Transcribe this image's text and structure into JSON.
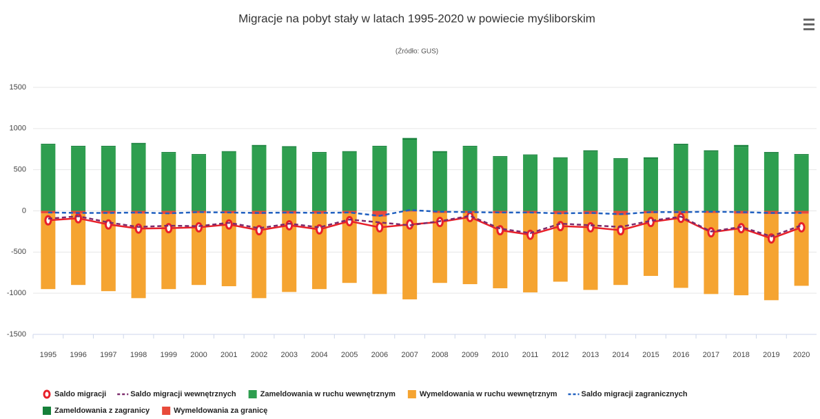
{
  "chart_data": {
    "type": "bar",
    "title": "Migracje na pobyt stały w latach 1995-2020 w powiecie myśliborskim",
    "subtitle": "(Źródło: GUS)",
    "categories": [
      "1995",
      "1996",
      "1997",
      "1998",
      "1999",
      "2000",
      "2001",
      "2002",
      "2003",
      "2004",
      "2005",
      "2006",
      "2007",
      "2008",
      "2009",
      "2010",
      "2011",
      "2012",
      "2013",
      "2014",
      "2015",
      "2016",
      "2017",
      "2018",
      "2019",
      "2020"
    ],
    "ylim": [
      -1500,
      1500
    ],
    "yticks": [
      -1500,
      -1000,
      -500,
      0,
      500,
      1000,
      1500
    ],
    "grid": true,
    "legend": "bottom",
    "series": [
      {
        "name": "Saldo migracji",
        "type": "line",
        "marker": true,
        "color": "#e8202a",
        "values": [
          -115,
          -90,
          -165,
          -215,
          -210,
          -200,
          -165,
          -235,
          -175,
          -225,
          -125,
          -200,
          -165,
          -135,
          -75,
          -235,
          -290,
          -185,
          -200,
          -235,
          -135,
          -85,
          -260,
          -210,
          -335,
          -200
        ]
      },
      {
        "name": "Saldo migracji wewnętrznych",
        "type": "line",
        "dashed": true,
        "color": "#7b2a6b",
        "values": [
          -95,
          -65,
          -140,
          -195,
          -180,
          -185,
          -145,
          -210,
          -155,
          -200,
          -105,
          -140,
          -175,
          -125,
          -60,
          -215,
          -270,
          -155,
          -175,
          -195,
          -120,
          -70,
          -250,
          -195,
          -310,
          -175
        ]
      },
      {
        "name": "Zameldowania w ruchu wewnętrznym",
        "type": "bar",
        "color": "#2e9e4f",
        "values": [
          805,
          780,
          780,
          810,
          705,
          680,
          715,
          785,
          770,
          705,
          715,
          780,
          865,
          710,
          780,
          655,
          675,
          640,
          720,
          630,
          635,
          800,
          720,
          780,
          700,
          680
        ]
      },
      {
        "name": "Wymeldowania w ruchu wewnętrznym",
        "type": "bar",
        "color": "#f5a431",
        "values": [
          -920,
          -865,
          -940,
          -1025,
          -910,
          -875,
          -885,
          -1020,
          -950,
          -915,
          -845,
          -940,
          -1065,
          -850,
          -865,
          -910,
          -960,
          -820,
          -920,
          -850,
          -760,
          -905,
          -985,
          -990,
          -1045,
          -875
        ]
      },
      {
        "name": "Saldo migracji zagranicznych",
        "type": "line",
        "dashed": true,
        "color": "#1f5fbf",
        "values": [
          -20,
          -25,
          -25,
          -20,
          -30,
          -15,
          -20,
          -25,
          -20,
          -25,
          -20,
          -60,
          10,
          -10,
          -15,
          -20,
          -20,
          -30,
          -25,
          -40,
          -15,
          -15,
          -10,
          -15,
          -25,
          -25
        ]
      },
      {
        "name": "Zameldowania z zagranicy",
        "type": "bar",
        "color": "#16803a",
        "values": [
          10,
          10,
          10,
          15,
          10,
          10,
          10,
          15,
          15,
          10,
          10,
          10,
          20,
          15,
          10,
          10,
          10,
          10,
          15,
          10,
          15,
          15,
          15,
          20,
          15,
          10
        ]
      },
      {
        "name": "Wymeldowania za granicę",
        "type": "bar",
        "color": "#e84a3a",
        "values": [
          -30,
          -35,
          -35,
          -35,
          -40,
          -25,
          -30,
          -40,
          -35,
          -35,
          -30,
          -70,
          -10,
          -25,
          -25,
          -30,
          -30,
          -40,
          -40,
          -50,
          -30,
          -30,
          -25,
          -35,
          -40,
          -35
        ]
      }
    ]
  }
}
